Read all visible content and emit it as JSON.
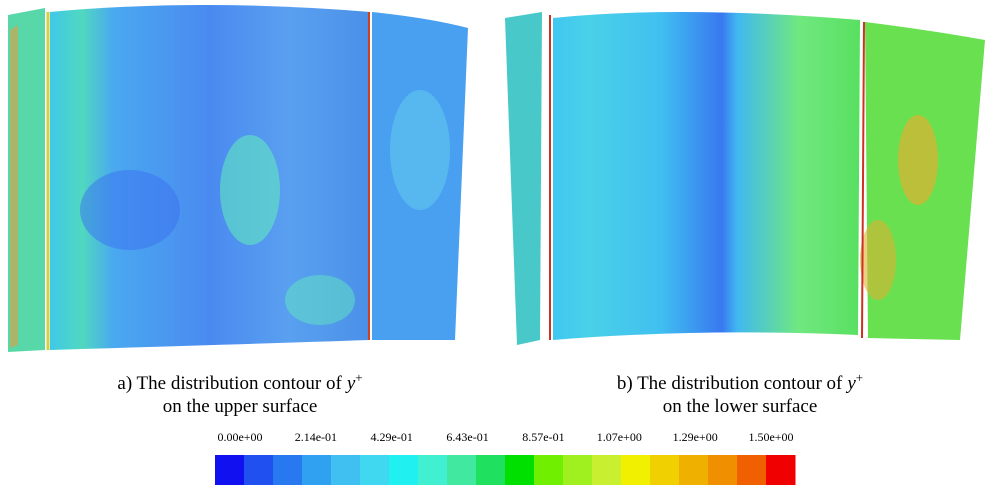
{
  "figure": {
    "panels": [
      {
        "prefix": "a) The distribution contour of",
        "symbol": "y",
        "superscript": "+",
        "line2": "on the upper surface"
      },
      {
        "prefix": "b) The distribution contour of",
        "symbol": "y",
        "superscript": "+",
        "line2": "on the lower surface"
      }
    ],
    "colorbar": {
      "labels": [
        "0.00e+00",
        "2.14e-01",
        "4.29e-01",
        "6.43e-01",
        "8.57e-01",
        "1.07e+00",
        "1.29e+00",
        "1.50e+00"
      ],
      "colors": [
        "#1010f0",
        "#2050f0",
        "#2878f0",
        "#30a0f0",
        "#40c0f0",
        "#40d8f0",
        "#20f0f0",
        "#40f0d0",
        "#40e8a0",
        "#20e060",
        "#00e000",
        "#70f000",
        "#a0f020",
        "#c8f030",
        "#f0f000",
        "#f0d000",
        "#f0b000",
        "#f09000",
        "#f06000",
        "#f00000"
      ]
    }
  }
}
